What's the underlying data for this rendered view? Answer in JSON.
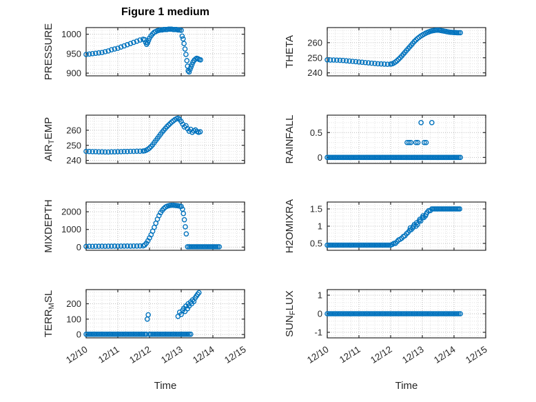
{
  "figure": {
    "marker_color": "#0072BD",
    "axis_color": "#262626",
    "grid_color": "#b9b9b9",
    "minor_grid_color": "#e0e0e0",
    "background": "#ffffff",
    "marker_style": "open-circle"
  },
  "x_axis": {
    "label": "Time",
    "lim": [
      0,
      5
    ],
    "ticks": [
      0,
      1,
      2,
      3,
      4,
      5
    ],
    "tick_labels": [
      "12/10",
      "12/11",
      "12/12",
      "12/13",
      "12/14",
      "12/15"
    ],
    "minor_step": 0.25
  },
  "chart_data": [
    {
      "type": "scatter",
      "name": "PRESSURE",
      "title": "Figure 1 medium",
      "ylabel": "PRESSURE",
      "ylabel_parts": [
        {
          "text": "PRESSURE",
          "sub": false
        }
      ],
      "ylim": [
        893,
        1017
      ],
      "yticks": [
        900,
        950,
        1000
      ],
      "y_minor_step": 10,
      "grid": true,
      "points": [
        [
          0,
          948
        ],
        [
          0.1,
          949
        ],
        [
          0.2,
          950
        ],
        [
          0.3,
          951
        ],
        [
          0.4,
          952
        ],
        [
          0.5,
          953
        ],
        [
          0.6,
          955
        ],
        [
          0.7,
          957
        ],
        [
          0.8,
          960
        ],
        [
          0.9,
          962
        ],
        [
          1.0,
          964
        ],
        [
          1.1,
          967
        ],
        [
          1.2,
          970
        ],
        [
          1.3,
          973
        ],
        [
          1.4,
          976
        ],
        [
          1.5,
          979
        ],
        [
          1.6,
          982
        ],
        [
          1.7,
          985
        ],
        [
          1.8,
          987
        ],
        [
          1.85,
          986
        ],
        [
          1.88,
          979
        ],
        [
          1.91,
          974
        ],
        [
          1.94,
          978
        ],
        [
          1.97,
          984
        ],
        [
          2.0,
          990
        ],
        [
          2.05,
          996
        ],
        [
          2.1,
          1001
        ],
        [
          2.15,
          1005
        ],
        [
          2.2,
          1007
        ],
        [
          2.25,
          1009
        ],
        [
          2.3,
          1010
        ],
        [
          2.35,
          1011
        ],
        [
          2.4,
          1011
        ],
        [
          2.45,
          1012
        ],
        [
          2.5,
          1012
        ],
        [
          2.55,
          1012
        ],
        [
          2.6,
          1013
        ],
        [
          2.65,
          1013
        ],
        [
          2.7,
          1013
        ],
        [
          2.75,
          1012
        ],
        [
          2.8,
          1012
        ],
        [
          2.85,
          1012
        ],
        [
          2.9,
          1011
        ],
        [
          2.95,
          1011
        ],
        [
          3.0,
          1010
        ],
        [
          3.03,
          995
        ],
        [
          3.06,
          988
        ],
        [
          3.09,
          976
        ],
        [
          3.12,
          962
        ],
        [
          3.15,
          948
        ],
        [
          3.18,
          932
        ],
        [
          3.2,
          918
        ],
        [
          3.22,
          906
        ],
        [
          3.25,
          903
        ],
        [
          3.28,
          910
        ],
        [
          3.31,
          916
        ],
        [
          3.34,
          922
        ],
        [
          3.37,
          928
        ],
        [
          3.41,
          933
        ],
        [
          3.45,
          936
        ],
        [
          3.49,
          938
        ],
        [
          3.53,
          937
        ],
        [
          3.57,
          935
        ],
        [
          3.61,
          934
        ]
      ],
      "const_runs": []
    },
    {
      "type": "scatter",
      "name": "THETA",
      "ylabel": "THETA",
      "ylabel_parts": [
        {
          "text": "THETA",
          "sub": false
        }
      ],
      "ylim": [
        238,
        270
      ],
      "yticks": [
        240,
        250,
        260
      ],
      "y_minor_step": 2,
      "grid": true,
      "points": [
        [
          0,
          248.6
        ],
        [
          0.1,
          248.5
        ],
        [
          0.2,
          248.5
        ],
        [
          0.3,
          248.4
        ],
        [
          0.4,
          248.3
        ],
        [
          0.5,
          248.2
        ],
        [
          0.6,
          248.0
        ],
        [
          0.7,
          247.8
        ],
        [
          0.8,
          247.6
        ],
        [
          0.9,
          247.4
        ],
        [
          1.0,
          247.2
        ],
        [
          1.1,
          247.0
        ],
        [
          1.2,
          246.8
        ],
        [
          1.3,
          246.6
        ],
        [
          1.4,
          246.4
        ],
        [
          1.5,
          246.2
        ],
        [
          1.6,
          246.0
        ],
        [
          1.7,
          245.9
        ],
        [
          1.8,
          245.8
        ],
        [
          1.9,
          245.7
        ],
        [
          2.0,
          245.8
        ],
        [
          2.05,
          246.0
        ],
        [
          2.1,
          246.5
        ],
        [
          2.15,
          247.2
        ],
        [
          2.2,
          248.0
        ],
        [
          2.25,
          249.0
        ],
        [
          2.3,
          250.0
        ],
        [
          2.35,
          251.2
        ],
        [
          2.4,
          252.4
        ],
        [
          2.45,
          253.6
        ],
        [
          2.5,
          254.8
        ],
        [
          2.55,
          256.0
        ],
        [
          2.6,
          257.2
        ],
        [
          2.65,
          258.4
        ],
        [
          2.7,
          259.6
        ],
        [
          2.75,
          260.8
        ],
        [
          2.8,
          261.8
        ],
        [
          2.85,
          262.8
        ],
        [
          2.9,
          263.6
        ],
        [
          2.95,
          264.4
        ],
        [
          3.0,
          265.0
        ],
        [
          3.05,
          265.6
        ],
        [
          3.1,
          266.2
        ],
        [
          3.15,
          266.7
        ],
        [
          3.2,
          267.1
        ],
        [
          3.25,
          267.5
        ],
        [
          3.3,
          267.8
        ],
        [
          3.35,
          268.0
        ],
        [
          3.4,
          268.2
        ],
        [
          3.45,
          268.3
        ],
        [
          3.5,
          268.3
        ],
        [
          3.55,
          268.2
        ],
        [
          3.6,
          268.0
        ],
        [
          3.65,
          267.8
        ],
        [
          3.7,
          267.6
        ],
        [
          3.75,
          267.4
        ],
        [
          3.8,
          267.2
        ],
        [
          3.85,
          267.0
        ],
        [
          3.9,
          266.9
        ],
        [
          3.95,
          266.8
        ],
        [
          4.0,
          266.7
        ],
        [
          4.05,
          266.7
        ],
        [
          4.1,
          266.6
        ],
        [
          4.15,
          266.6
        ],
        [
          4.2,
          266.6
        ]
      ],
      "const_runs": []
    },
    {
      "type": "scatter",
      "name": "AIR_TEMP",
      "ylabel": "AIR_TEMP",
      "ylabel_parts": [
        {
          "text": "AIR",
          "sub": false
        },
        {
          "text": "T",
          "sub": true
        },
        {
          "text": "EMP",
          "sub": false
        }
      ],
      "ylim": [
        238,
        270
      ],
      "yticks": [
        240,
        250,
        260
      ],
      "y_minor_step": 2,
      "grid": true,
      "points": [
        [
          0,
          246.0
        ],
        [
          0.1,
          245.9
        ],
        [
          0.2,
          245.8
        ],
        [
          0.3,
          245.8
        ],
        [
          0.4,
          245.7
        ],
        [
          0.5,
          245.7
        ],
        [
          0.6,
          245.6
        ],
        [
          0.7,
          245.6
        ],
        [
          0.8,
          245.7
        ],
        [
          0.9,
          245.7
        ],
        [
          1.0,
          245.8
        ],
        [
          1.1,
          245.8
        ],
        [
          1.2,
          245.9
        ],
        [
          1.3,
          245.9
        ],
        [
          1.4,
          246.0
        ],
        [
          1.5,
          246.0
        ],
        [
          1.6,
          246.1
        ],
        [
          1.7,
          246.1
        ],
        [
          1.8,
          246.2
        ],
        [
          1.85,
          246.4
        ],
        [
          1.9,
          246.8
        ],
        [
          1.95,
          247.4
        ],
        [
          2.0,
          248.2
        ],
        [
          2.05,
          249.2
        ],
        [
          2.1,
          250.4
        ],
        [
          2.15,
          251.8
        ],
        [
          2.2,
          253.2
        ],
        [
          2.25,
          254.6
        ],
        [
          2.3,
          256.0
        ],
        [
          2.35,
          257.4
        ],
        [
          2.4,
          258.8
        ],
        [
          2.45,
          260.0
        ],
        [
          2.5,
          261.2
        ],
        [
          2.55,
          262.4
        ],
        [
          2.6,
          263.4
        ],
        [
          2.65,
          264.4
        ],
        [
          2.7,
          265.4
        ],
        [
          2.75,
          266.2
        ],
        [
          2.8,
          267.0
        ],
        [
          2.85,
          267.6
        ],
        [
          2.9,
          268.0
        ],
        [
          2.95,
          267.2
        ],
        [
          3.0,
          265.8
        ],
        [
          3.05,
          264.0
        ],
        [
          3.1,
          262.2
        ],
        [
          3.15,
          263.0
        ],
        [
          3.2,
          261.0
        ],
        [
          3.25,
          259.4
        ],
        [
          3.3,
          260.6
        ],
        [
          3.35,
          258.6
        ],
        [
          3.4,
          259.6
        ],
        [
          3.45,
          260.2
        ],
        [
          3.5,
          259.2
        ],
        [
          3.55,
          258.6
        ],
        [
          3.6,
          259.0
        ]
      ],
      "const_runs": []
    },
    {
      "type": "scatter",
      "name": "RAINFALL",
      "ylabel": "RAINFALL",
      "ylabel_parts": [
        {
          "text": "RAINFALL",
          "sub": false
        }
      ],
      "ylim": [
        -0.12,
        0.85
      ],
      "yticks": [
        0,
        0.5
      ],
      "y_minor_step": 0.1,
      "grid": true,
      "points": [
        [
          2.52,
          0.3
        ],
        [
          2.58,
          0.3
        ],
        [
          2.64,
          0.3
        ],
        [
          2.8,
          0.3
        ],
        [
          2.86,
          0.3
        ],
        [
          2.96,
          0.7
        ],
        [
          3.06,
          0.3
        ],
        [
          3.12,
          0.3
        ],
        [
          3.3,
          0.7
        ]
      ],
      "const_runs": [
        [
          0,
          4.2,
          0.05,
          0
        ]
      ]
    },
    {
      "type": "scatter",
      "name": "MIXDEPTH",
      "ylabel": "MIXDEPTH",
      "ylabel_parts": [
        {
          "text": "MIXDEPTH",
          "sub": false
        }
      ],
      "ylim": [
        -180,
        2550
      ],
      "yticks": [
        0,
        1000,
        2000
      ],
      "y_minor_step": 200,
      "grid": true,
      "points": [
        [
          0,
          40
        ],
        [
          0.1,
          45
        ],
        [
          0.2,
          42
        ],
        [
          0.3,
          48
        ],
        [
          0.4,
          45
        ],
        [
          0.5,
          50
        ],
        [
          0.6,
          48
        ],
        [
          0.7,
          52
        ],
        [
          0.8,
          50
        ],
        [
          0.9,
          55
        ],
        [
          1.0,
          52
        ],
        [
          1.1,
          58
        ],
        [
          1.2,
          55
        ],
        [
          1.3,
          60
        ],
        [
          1.4,
          58
        ],
        [
          1.5,
          62
        ],
        [
          1.6,
          60
        ],
        [
          1.7,
          65
        ],
        [
          1.8,
          70
        ],
        [
          1.85,
          120
        ],
        [
          1.9,
          220
        ],
        [
          1.95,
          360
        ],
        [
          2.0,
          520
        ],
        [
          2.05,
          700
        ],
        [
          2.1,
          900
        ],
        [
          2.15,
          1120
        ],
        [
          2.2,
          1350
        ],
        [
          2.25,
          1580
        ],
        [
          2.3,
          1780
        ],
        [
          2.35,
          1950
        ],
        [
          2.4,
          2080
        ],
        [
          2.45,
          2180
        ],
        [
          2.5,
          2260
        ],
        [
          2.55,
          2310
        ],
        [
          2.6,
          2340
        ],
        [
          2.65,
          2360
        ],
        [
          2.7,
          2370
        ],
        [
          2.75,
          2370
        ],
        [
          2.8,
          2360
        ],
        [
          2.85,
          2350
        ],
        [
          2.9,
          2340
        ],
        [
          2.95,
          2320
        ],
        [
          3.0,
          2300
        ],
        [
          3.04,
          2150
        ],
        [
          3.07,
          1900
        ],
        [
          3.1,
          1550
        ],
        [
          3.13,
          1150
        ],
        [
          3.16,
          750
        ]
      ],
      "const_runs": [
        [
          3.2,
          4.2,
          0.05,
          20
        ]
      ]
    },
    {
      "type": "scatter",
      "name": "H2OMIXRA",
      "ylabel": "H2OMIXRA",
      "ylabel_parts": [
        {
          "text": "H2OMIXRA",
          "sub": false
        }
      ],
      "ylim": [
        0.3,
        1.7
      ],
      "yticks": [
        0.5,
        1,
        1.5
      ],
      "y_minor_step": 0.1,
      "grid": true,
      "points": [
        [
          2.05,
          0.47
        ],
        [
          2.1,
          0.5
        ],
        [
          2.15,
          0.5
        ],
        [
          2.2,
          0.55
        ],
        [
          2.25,
          0.6
        ],
        [
          2.3,
          0.62
        ],
        [
          2.35,
          0.65
        ],
        [
          2.4,
          0.7
        ],
        [
          2.45,
          0.72
        ],
        [
          2.5,
          0.78
        ],
        [
          2.55,
          0.82
        ],
        [
          2.6,
          0.88
        ],
        [
          2.62,
          0.95
        ],
        [
          2.65,
          0.9
        ],
        [
          2.7,
          0.95
        ],
        [
          2.72,
          1.0
        ],
        [
          2.75,
          1.05
        ],
        [
          2.8,
          1.0
        ],
        [
          2.82,
          1.1
        ],
        [
          2.85,
          1.05
        ],
        [
          2.9,
          1.15
        ],
        [
          2.92,
          1.2
        ],
        [
          2.95,
          1.15
        ],
        [
          3.0,
          1.25
        ],
        [
          3.02,
          1.3
        ],
        [
          3.05,
          1.25
        ],
        [
          3.1,
          1.3
        ],
        [
          3.12,
          1.35
        ],
        [
          3.15,
          1.4
        ],
        [
          3.2,
          1.45
        ],
        [
          3.25,
          1.45
        ]
      ],
      "const_runs": [
        [
          0,
          2.0,
          0.05,
          0.45
        ],
        [
          3.3,
          4.2,
          0.04,
          1.5
        ]
      ]
    },
    {
      "type": "scatter",
      "name": "TERR_MSL",
      "ylabel": "TERR_MSL",
      "ylabel_parts": [
        {
          "text": "TERR",
          "sub": false
        },
        {
          "text": "M",
          "sub": true
        },
        {
          "text": "SL",
          "sub": false
        }
      ],
      "ylim": [
        -22,
        292
      ],
      "yticks": [
        0,
        100,
        200
      ],
      "y_minor_step": 25,
      "grid": true,
      "points": [
        [
          1.93,
          100
        ],
        [
          1.96,
          128
        ],
        [
          2.9,
          118
        ],
        [
          2.95,
          145
        ],
        [
          3.0,
          130
        ],
        [
          3.05,
          158
        ],
        [
          3.08,
          170
        ],
        [
          3.12,
          150
        ],
        [
          3.15,
          185
        ],
        [
          3.2,
          168
        ],
        [
          3.22,
          200
        ],
        [
          3.25,
          185
        ],
        [
          3.3,
          212
        ],
        [
          3.33,
          200
        ],
        [
          3.36,
          225
        ],
        [
          3.4,
          215
        ],
        [
          3.44,
          238
        ],
        [
          3.48,
          250
        ],
        [
          3.52,
          262
        ],
        [
          3.56,
          272
        ]
      ],
      "const_runs": [
        [
          0,
          1.9,
          0.05,
          2
        ],
        [
          2.0,
          3.3,
          0.05,
          2
        ]
      ]
    },
    {
      "type": "scatter",
      "name": "SUN_FLUX",
      "ylabel": "SUN_FLUX",
      "ylabel_parts": [
        {
          "text": "SUN",
          "sub": false
        },
        {
          "text": "F",
          "sub": true
        },
        {
          "text": "LUX",
          "sub": false
        }
      ],
      "ylim": [
        -1.3,
        1.3
      ],
      "yticks": [
        -1,
        0,
        1
      ],
      "y_minor_step": 0.2,
      "grid": true,
      "points": [],
      "const_runs": [
        [
          0,
          4.2,
          0.05,
          0
        ]
      ]
    }
  ]
}
